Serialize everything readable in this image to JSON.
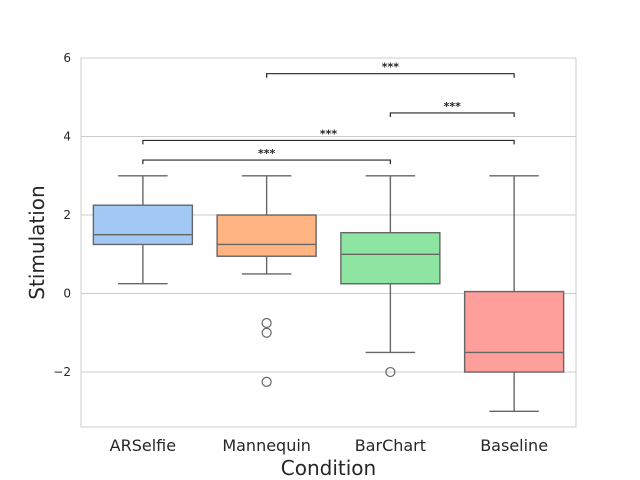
{
  "chart_data": {
    "type": "box",
    "title": "",
    "xlabel": "Condition",
    "ylabel": "Stimulation",
    "ylim": [
      -3.4,
      6
    ],
    "yticks": [
      -2,
      0,
      2,
      4,
      6
    ],
    "yticklabels": [
      "−2",
      "0",
      "2",
      "4",
      "6"
    ],
    "grid": "horizontal",
    "categories": [
      "ARSelfie",
      "Mannequin",
      "BarChart",
      "Baseline"
    ],
    "boxes": [
      {
        "name": "ARSelfie",
        "whisker_low": 0.25,
        "q1": 1.25,
        "median": 1.5,
        "q3": 2.25,
        "whisker_high": 3.0,
        "outliers": [],
        "color": "#a1c9f4"
      },
      {
        "name": "Mannequin",
        "whisker_low": 0.5,
        "q1": 0.95,
        "median": 1.25,
        "q3": 2.0,
        "whisker_high": 3.0,
        "outliers": [
          -0.75,
          -1.0,
          -2.25
        ],
        "color": "#ffb482"
      },
      {
        "name": "BarChart",
        "whisker_low": -1.5,
        "q1": 0.25,
        "median": 1.0,
        "q3": 1.55,
        "whisker_high": 3.0,
        "outliers": [
          -2.0
        ],
        "color": "#8de5a1"
      },
      {
        "name": "Baseline",
        "whisker_low": -3.0,
        "q1": -2.0,
        "median": -1.5,
        "q3": 0.05,
        "whisker_high": 3.0,
        "outliers": [],
        "color": "#ff9f9b"
      }
    ],
    "significance": [
      {
        "from": 0,
        "to": 2,
        "y": 3.4,
        "label": "***"
      },
      {
        "from": 0,
        "to": 3,
        "y": 3.9,
        "label": "***"
      },
      {
        "from": 2,
        "to": 3,
        "y": 4.6,
        "label": "***"
      },
      {
        "from": 1,
        "to": 3,
        "y": 5.6,
        "label": "***"
      }
    ]
  }
}
